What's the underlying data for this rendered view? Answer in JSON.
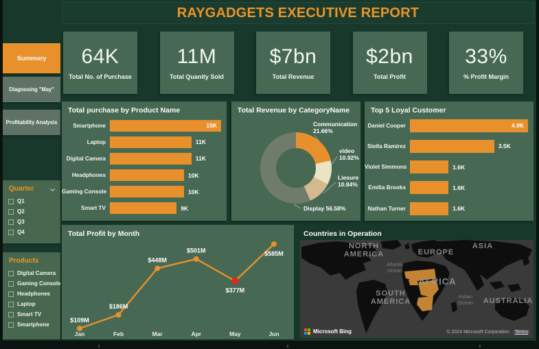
{
  "header": {
    "title": "RAYGADGETS EXECUTIVE REPORT"
  },
  "colors": {
    "page_bg": "#17382B",
    "panel_bg": "#476954",
    "accent_orange": "#E8912C",
    "title_orange": "#ED9427",
    "nav_inactive": "#5E7365",
    "highlight_red": "#E3261A",
    "map_ocean": "#3A3A3A",
    "map_land": "#0E0E0E",
    "map_highlight": "#C28433"
  },
  "sidebar": {
    "nav": [
      {
        "label": "Summary",
        "active": true
      },
      {
        "label": "Diagnosing \"May\"",
        "active": false
      },
      {
        "label": "Profitability Analysis",
        "active": false
      }
    ],
    "filters": [
      {
        "title": "Quarter",
        "options": [
          "Q1",
          "Q2",
          "Q3",
          "Q4"
        ]
      },
      {
        "title": "Products",
        "options": [
          "Digital Camera",
          "Gaming Console",
          "Headphones",
          "Laptop",
          "Smart TV",
          "Smartphone"
        ]
      }
    ]
  },
  "kpis": [
    {
      "value": "64K",
      "label": "Total No. of Purchase"
    },
    {
      "value": "11M",
      "label": "Total Quanity Sold"
    },
    {
      "value": "$7bn",
      "label": "Total Revenue"
    },
    {
      "value": "$2bn",
      "label": "Total Profit"
    },
    {
      "value": "33%",
      "label": "% Profit Margin"
    }
  ],
  "chart_data": [
    {
      "id": "purchase-by-product",
      "type": "bar",
      "orientation": "horizontal",
      "title": "Total purchase by Product Name",
      "categories": [
        "Smartphone",
        "Laptop",
        "Digital Camera",
        "Headphones",
        "Gaming Console",
        "Smart TV"
      ],
      "values": [
        15,
        11,
        11,
        10,
        10,
        9
      ],
      "unit": "K",
      "value_labels": [
        "15K",
        "11K",
        "11K",
        "10K",
        "10K",
        "9K"
      ],
      "bar_color": "#E8912C"
    },
    {
      "id": "revenue-by-category",
      "type": "pie",
      "donut": true,
      "title": "Total Revenue by CategoryName",
      "categories": [
        "Communication",
        "video",
        "Liesure",
        "Display"
      ],
      "values": [
        21.66,
        10.92,
        10.84,
        56.58
      ],
      "value_labels": [
        "21.66%",
        "10.92%",
        "10.84%",
        "56.58%"
      ],
      "colors": [
        "#E8912C",
        "#EAE4C5",
        "#D5B98F",
        "#6F7C6B"
      ]
    },
    {
      "id": "top-customers",
      "type": "bar",
      "orientation": "horizontal",
      "title": "Top 5 Loyal Customer",
      "categories": [
        "Daniel Cooper",
        "Stella Ramirez",
        "Violet Simmons",
        "Emilia Brooks",
        "Nathan Turner"
      ],
      "values": [
        4.9,
        3.5,
        1.6,
        1.6,
        1.6
      ],
      "unit": "K",
      "value_labels": [
        "4.9K",
        "3.5K",
        "1.6K",
        "1.6K",
        "1.6K"
      ],
      "bar_color": "#E8912C"
    },
    {
      "id": "profit-by-month",
      "type": "line",
      "title": "Total Profit by Month",
      "x": [
        "Jan",
        "Feb",
        "Mar",
        "Apr",
        "May",
        "Jun"
      ],
      "values": [
        109,
        186,
        448,
        501,
        377,
        585
      ],
      "unit": "$M",
      "point_labels": [
        "$109M",
        "$186M",
        "$448M",
        "$501M",
        "$377M",
        "$585M"
      ],
      "line_color": "#E8912C",
      "highlight": {
        "index": 4,
        "color": "#E3261A"
      }
    }
  ],
  "map": {
    "title": "Countries in Operation",
    "continent_labels": [
      "NORTH AMERICA",
      "SOUTH AMERICA",
      "EUROPE",
      "AFRICA",
      "ASIA",
      "AUSTRALIA"
    ],
    "ocean_labels": [
      "Atlantic Ocean",
      "Indian Ocean"
    ],
    "provider": "Microsoft Bing",
    "attribution": "© 2024 Microsoft Corporation",
    "terms_label": "Terms",
    "highlight_region": "Africa operating countries",
    "highlight_color": "#C28433"
  }
}
